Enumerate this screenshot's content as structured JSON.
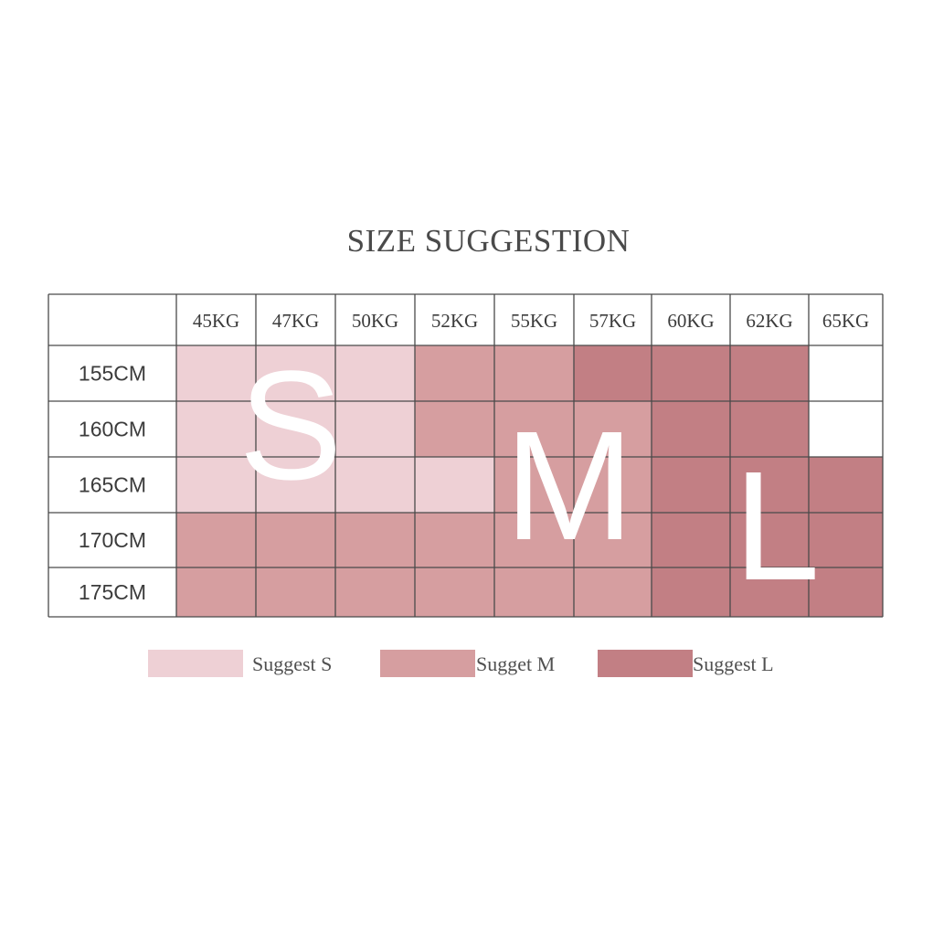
{
  "chart_data": {
    "type": "table",
    "title": "SIZE SUGGESTION",
    "columns": [
      "45KG",
      "47KG",
      "50KG",
      "52KG",
      "55KG",
      "57KG",
      "60KG",
      "62KG",
      "65KG"
    ],
    "rows": [
      "155CM",
      "160CM",
      "165CM",
      "170CM",
      "175CM"
    ],
    "cells": [
      [
        "S",
        "S",
        "S",
        "M",
        "M",
        "L",
        "L",
        "L",
        ""
      ],
      [
        "S",
        "S",
        "S",
        "M",
        "M",
        "M",
        "L",
        "L",
        ""
      ],
      [
        "S",
        "S",
        "S",
        "S",
        "M",
        "M",
        "L",
        "L",
        "L"
      ],
      [
        "M",
        "M",
        "M",
        "M",
        "M",
        "M",
        "L",
        "L",
        "L"
      ],
      [
        "M",
        "M",
        "M",
        "M",
        "M",
        "M",
        "L",
        "L",
        "L"
      ]
    ],
    "overlay_letters": [
      "S",
      "M",
      "L"
    ],
    "colors": {
      "S": "#eed0d5",
      "M": "#d69ea0",
      "L": "#c27f84",
      "border": "#4a4a4a",
      "empty": "#ffffff"
    },
    "legend": [
      {
        "key": "S",
        "label": "Suggest S"
      },
      {
        "key": "M",
        "label": "Sugget M"
      },
      {
        "key": "L",
        "label": "Suggest L"
      }
    ]
  }
}
